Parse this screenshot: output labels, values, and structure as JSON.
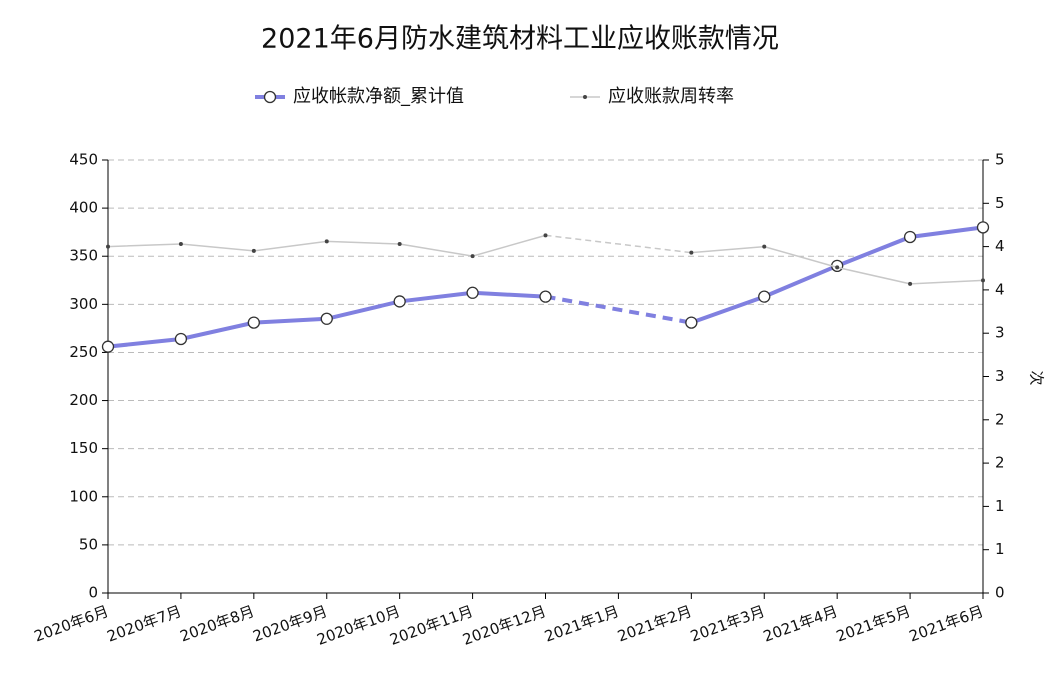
{
  "chart_data": {
    "type": "line",
    "title": "2021年6月防水建筑材料工业应收账款情况",
    "categories": [
      "2020年6月",
      "2020年7月",
      "2020年8月",
      "2020年9月",
      "2020年10月",
      "2020年11月",
      "2020年12月",
      "2021年1月",
      "2021年2月",
      "2021年3月",
      "2021年4月",
      "2021年5月",
      "2021年6月"
    ],
    "series": [
      {
        "name": "应收帐款净额_累计值",
        "color": "#8080e0",
        "axis": "y",
        "values": [
          256,
          264,
          281,
          285,
          303,
          312,
          308,
          null,
          281,
          308,
          340,
          370,
          380
        ]
      },
      {
        "name": "应收账款周转率",
        "color": "#c8c8c8",
        "axis": "y2",
        "values": [
          4.0,
          4.03,
          3.95,
          4.06,
          4.03,
          3.89,
          4.13,
          null,
          3.93,
          4.0,
          3.76,
          3.57,
          3.61
        ]
      }
    ],
    "ylim": [
      0,
      450
    ],
    "yticks": [
      0,
      50,
      100,
      150,
      200,
      250,
      300,
      350,
      400,
      450
    ],
    "y2lim": [
      0,
      5
    ],
    "y2ticks": [
      0,
      {
        "value": 0.5,
        "label": "1"
      },
      1,
      {
        "value": 1.5,
        "label": "2"
      },
      2,
      {
        "value": 2.5,
        "label": "3"
      },
      3,
      {
        "value": 3.5,
        "label": "4"
      },
      4,
      {
        "value": 4.5,
        "label": "5"
      },
      5
    ],
    "y2label": "次",
    "grid": true,
    "gap_style": "dashed",
    "legend": "top"
  }
}
